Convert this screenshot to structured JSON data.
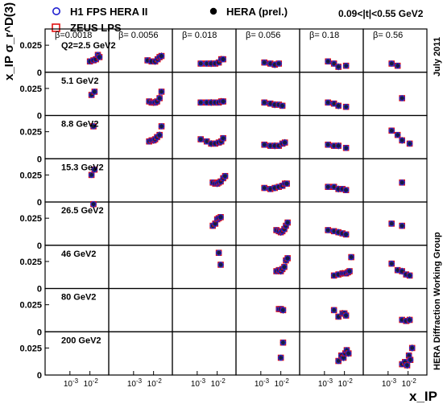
{
  "chart_data": {
    "type": "scatter",
    "title": "",
    "xlabel": "x_IP",
    "ylabel": "x_IP σ_r^D(3)",
    "x_scale": "log",
    "x_ticks": [
      "10-3",
      "10-2"
    ],
    "y_ticks": [
      "0",
      "0.025"
    ],
    "ylim": [
      0,
      0.04
    ],
    "xlim": [
      0.0001,
      0.05
    ],
    "grid": false,
    "legend_placement": "top-left",
    "t_range_label": "0.09<|t|<0.55 GeV2",
    "date_label": "July 2011",
    "group_label": "HERA Diffraction Working Group",
    "beta_values": [
      "β=0.0018",
      "β= 0.0056",
      "β= 0.018",
      "β= 0.056",
      "β= 0.18",
      "β= 0.56"
    ],
    "q2_labels": [
      "Q2=2.5 GeV2",
      "5.1 GeV2",
      "8.8 GeV2",
      "15.3 GeV2",
      "26.5 GeV2",
      "46 GeV2",
      "80 GeV2",
      "200 GeV2"
    ],
    "series": [
      {
        "name": "H1 FPS HERA II",
        "marker": "open-circle",
        "color": "#1f1fd0"
      },
      {
        "name": "ZEUS LPS",
        "marker": "open-square",
        "color": "#e01010"
      },
      {
        "name": "HERA (prel.)",
        "marker": "filled-circle",
        "color": "#000000"
      }
    ],
    "cells": [
      {
        "row": 0,
        "col": 0,
        "points": [
          [
            0.01,
            0.01
          ],
          [
            0.015,
            0.011
          ],
          [
            0.02,
            0.012
          ],
          [
            0.025,
            0.016
          ],
          [
            0.03,
            0.014
          ]
        ]
      },
      {
        "row": 0,
        "col": 1,
        "points": [
          [
            0.005,
            0.011
          ],
          [
            0.008,
            0.01
          ],
          [
            0.012,
            0.01
          ],
          [
            0.016,
            0.012
          ],
          [
            0.02,
            0.014
          ],
          [
            0.025,
            0.015
          ]
        ]
      },
      {
        "row": 0,
        "col": 2,
        "points": [
          [
            0.0015,
            0.008
          ],
          [
            0.003,
            0.008
          ],
          [
            0.005,
            0.008
          ],
          [
            0.008,
            0.008
          ],
          [
            0.012,
            0.009
          ],
          [
            0.016,
            0.012
          ],
          [
            0.02,
            0.012
          ]
        ]
      },
      {
        "row": 0,
        "col": 3,
        "points": [
          [
            0.0015,
            0.009
          ],
          [
            0.003,
            0.008
          ],
          [
            0.005,
            0.007
          ],
          [
            0.008,
            0.008
          ]
        ]
      },
      {
        "row": 0,
        "col": 4,
        "points": [
          [
            0.0015,
            0.01
          ],
          [
            0.003,
            0.008
          ],
          [
            0.005,
            0.005
          ],
          [
            0.012,
            0.006
          ]
        ]
      },
      {
        "row": 0,
        "col": 5,
        "points": [
          [
            0.0015,
            0.008
          ],
          [
            0.003,
            0.006
          ]
        ]
      },
      {
        "row": 1,
        "col": 0,
        "points": [
          [
            0.012,
            0.019
          ],
          [
            0.017,
            0.022
          ]
        ]
      },
      {
        "row": 1,
        "col": 1,
        "points": [
          [
            0.006,
            0.013
          ],
          [
            0.008,
            0.012
          ],
          [
            0.01,
            0.012
          ],
          [
            0.012,
            0.012
          ],
          [
            0.015,
            0.013
          ],
          [
            0.02,
            0.016
          ],
          [
            0.025,
            0.022
          ]
        ]
      },
      {
        "row": 1,
        "col": 2,
        "points": [
          [
            0.0015,
            0.012
          ],
          [
            0.003,
            0.012
          ],
          [
            0.005,
            0.012
          ],
          [
            0.008,
            0.012
          ],
          [
            0.012,
            0.012
          ],
          [
            0.016,
            0.013
          ],
          [
            0.02,
            0.013
          ]
        ]
      },
      {
        "row": 1,
        "col": 3,
        "points": [
          [
            0.0015,
            0.012
          ],
          [
            0.003,
            0.011
          ],
          [
            0.005,
            0.01
          ],
          [
            0.008,
            0.01
          ],
          [
            0.012,
            0.009
          ]
        ]
      },
      {
        "row": 1,
        "col": 4,
        "points": [
          [
            0.0015,
            0.012
          ],
          [
            0.003,
            0.011
          ],
          [
            0.005,
            0.009
          ],
          [
            0.012,
            0.008
          ]
        ]
      },
      {
        "row": 1,
        "col": 5,
        "points": [
          [
            0.005,
            0.016
          ]
        ]
      },
      {
        "row": 2,
        "col": 0,
        "points": [
          [
            0.015,
            0.03
          ]
        ]
      },
      {
        "row": 2,
        "col": 1,
        "points": [
          [
            0.006,
            0.016
          ],
          [
            0.008,
            0.017
          ],
          [
            0.01,
            0.017
          ],
          [
            0.012,
            0.018
          ],
          [
            0.015,
            0.02
          ],
          [
            0.02,
            0.022
          ],
          [
            0.025,
            0.03
          ]
        ]
      },
      {
        "row": 2,
        "col": 2,
        "points": [
          [
            0.0015,
            0.018
          ],
          [
            0.003,
            0.016
          ],
          [
            0.005,
            0.014
          ],
          [
            0.008,
            0.014
          ],
          [
            0.012,
            0.015
          ],
          [
            0.016,
            0.016
          ],
          [
            0.02,
            0.019
          ]
        ]
      },
      {
        "row": 2,
        "col": 3,
        "points": [
          [
            0.0015,
            0.013
          ],
          [
            0.003,
            0.012
          ],
          [
            0.005,
            0.012
          ],
          [
            0.008,
            0.012
          ],
          [
            0.012,
            0.014
          ],
          [
            0.016,
            0.015
          ]
        ]
      },
      {
        "row": 2,
        "col": 4,
        "points": [
          [
            0.0015,
            0.013
          ],
          [
            0.003,
            0.012
          ],
          [
            0.005,
            0.012
          ],
          [
            0.012,
            0.01
          ]
        ]
      },
      {
        "row": 2,
        "col": 5,
        "points": [
          [
            0.0015,
            0.026
          ],
          [
            0.003,
            0.022
          ],
          [
            0.005,
            0.017
          ],
          [
            0.012,
            0.014
          ]
        ]
      },
      {
        "row": 3,
        "col": 0,
        "points": [
          [
            0.012,
            0.025
          ],
          [
            0.017,
            0.03
          ]
        ]
      },
      {
        "row": 3,
        "col": 2,
        "points": [
          [
            0.006,
            0.018
          ],
          [
            0.008,
            0.017
          ],
          [
            0.01,
            0.017
          ],
          [
            0.012,
            0.018
          ],
          [
            0.015,
            0.019
          ],
          [
            0.02,
            0.022
          ],
          [
            0.025,
            0.024
          ]
        ]
      },
      {
        "row": 3,
        "col": 3,
        "points": [
          [
            0.0015,
            0.013
          ],
          [
            0.003,
            0.012
          ],
          [
            0.005,
            0.013
          ],
          [
            0.008,
            0.014
          ],
          [
            0.012,
            0.015
          ],
          [
            0.016,
            0.017
          ],
          [
            0.02,
            0.017
          ]
        ]
      },
      {
        "row": 3,
        "col": 4,
        "points": [
          [
            0.0015,
            0.014
          ],
          [
            0.003,
            0.014
          ],
          [
            0.005,
            0.012
          ],
          [
            0.008,
            0.012
          ],
          [
            0.012,
            0.011
          ]
        ]
      },
      {
        "row": 3,
        "col": 5,
        "points": [
          [
            0.005,
            0.018
          ]
        ]
      },
      {
        "row": 4,
        "col": 0,
        "points": [
          [
            0.015,
            0.038
          ]
        ]
      },
      {
        "row": 4,
        "col": 2,
        "points": [
          [
            0.006,
            0.018
          ],
          [
            0.008,
            0.02
          ],
          [
            0.01,
            0.024
          ],
          [
            0.012,
            0.025
          ],
          [
            0.015,
            0.026
          ]
        ]
      },
      {
        "row": 4,
        "col": 3,
        "points": [
          [
            0.006,
            0.014
          ],
          [
            0.008,
            0.013
          ],
          [
            0.01,
            0.012
          ],
          [
            0.012,
            0.013
          ],
          [
            0.015,
            0.015
          ],
          [
            0.018,
            0.018
          ],
          [
            0.022,
            0.021
          ]
        ]
      },
      {
        "row": 4,
        "col": 4,
        "points": [
          [
            0.0015,
            0.014
          ],
          [
            0.003,
            0.013
          ],
          [
            0.005,
            0.012
          ],
          [
            0.008,
            0.011
          ],
          [
            0.012,
            0.01
          ]
        ]
      },
      {
        "row": 4,
        "col": 5,
        "points": [
          [
            0.0015,
            0.02
          ],
          [
            0.005,
            0.018
          ]
        ]
      },
      {
        "row": 5,
        "col": 2,
        "points": [
          [
            0.012,
            0.033
          ],
          [
            0.015,
            0.022
          ]
        ]
      },
      {
        "row": 5,
        "col": 3,
        "points": [
          [
            0.006,
            0.016
          ],
          [
            0.008,
            0.017
          ],
          [
            0.01,
            0.016
          ],
          [
            0.012,
            0.018
          ],
          [
            0.015,
            0.02
          ],
          [
            0.018,
            0.026
          ],
          [
            0.022,
            0.028
          ]
        ]
      },
      {
        "row": 5,
        "col": 4,
        "points": [
          [
            0.003,
            0.012
          ],
          [
            0.005,
            0.013
          ],
          [
            0.008,
            0.014
          ],
          [
            0.01,
            0.014
          ],
          [
            0.012,
            0.014
          ],
          [
            0.015,
            0.015
          ],
          [
            0.018,
            0.016
          ],
          [
            0.022,
            0.029
          ]
        ]
      },
      {
        "row": 5,
        "col": 5,
        "points": [
          [
            0.0015,
            0.023
          ],
          [
            0.003,
            0.017
          ],
          [
            0.005,
            0.016
          ],
          [
            0.008,
            0.013
          ],
          [
            0.012,
            0.012
          ]
        ]
      },
      {
        "row": 6,
        "col": 3,
        "points": [
          [
            0.008,
            0.021
          ],
          [
            0.01,
            0.021
          ],
          [
            0.013,
            0.02
          ]
        ]
      },
      {
        "row": 6,
        "col": 4,
        "points": [
          [
            0.003,
            0.02
          ],
          [
            0.005,
            0.014
          ],
          [
            0.008,
            0.017
          ],
          [
            0.01,
            0.017
          ],
          [
            0.012,
            0.015
          ]
        ]
      },
      {
        "row": 6,
        "col": 5,
        "points": [
          [
            0.005,
            0.011
          ],
          [
            0.008,
            0.01
          ],
          [
            0.012,
            0.011
          ]
        ]
      },
      {
        "row": 7,
        "col": 3,
        "points": [
          [
            0.01,
            0.016
          ],
          [
            0.013,
            0.03
          ]
        ]
      },
      {
        "row": 7,
        "col": 4,
        "points": [
          [
            0.005,
            0.013
          ],
          [
            0.007,
            0.018
          ],
          [
            0.009,
            0.016
          ],
          [
            0.011,
            0.02
          ],
          [
            0.013,
            0.023
          ],
          [
            0.016,
            0.02
          ]
        ]
      },
      {
        "row": 7,
        "col": 5,
        "points": [
          [
            0.005,
            0.01
          ],
          [
            0.007,
            0.012
          ],
          [
            0.009,
            0.009
          ],
          [
            0.011,
            0.018
          ],
          [
            0.013,
            0.014
          ],
          [
            0.016,
            0.025
          ]
        ]
      }
    ]
  }
}
